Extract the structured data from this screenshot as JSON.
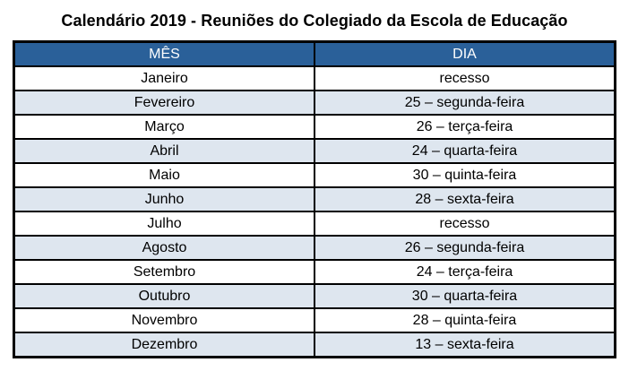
{
  "title": "Calendário 2019 - Reuniões do Colegiado da Escola de Educação",
  "colors": {
    "header_bg": "#2A6099",
    "header_text": "#FFFFFF",
    "alt_row_bg": "#DEE6EF",
    "row_bg": "#FFFFFF",
    "border": "#000000",
    "title_text": "#000000"
  },
  "table": {
    "headers": [
      "MÊS",
      "DIA"
    ],
    "rows": [
      {
        "month": "Janeiro",
        "day": "recesso"
      },
      {
        "month": "Fevereiro",
        "day": "25 – segunda-feira"
      },
      {
        "month": "Março",
        "day": "26 – terça-feira"
      },
      {
        "month": "Abril",
        "day": "24 – quarta-feira"
      },
      {
        "month": "Maio",
        "day": "30 – quinta-feira"
      },
      {
        "month": "Junho",
        "day": "28 – sexta-feira"
      },
      {
        "month": "Julho",
        "day": "recesso"
      },
      {
        "month": "Agosto",
        "day": "26 – segunda-feira"
      },
      {
        "month": "Setembro",
        "day": "24 – terça-feira"
      },
      {
        "month": "Outubro",
        "day": "30 – quarta-feira"
      },
      {
        "month": "Novembro",
        "day": "28 – quinta-feira"
      },
      {
        "month": "Dezembro",
        "day": "13 – sexta-feira"
      }
    ]
  }
}
